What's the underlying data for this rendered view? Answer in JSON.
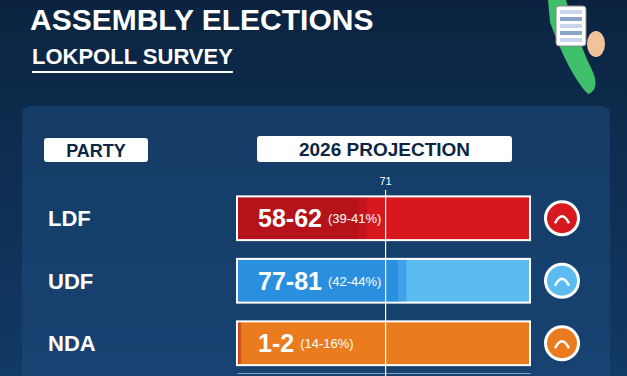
{
  "chart_data": {
    "type": "bar",
    "orientation": "horizontal",
    "title": "ASSEMBLY ELECTIONS",
    "subtitle": "LOKPOLL SURVEY",
    "y_label": "PARTY",
    "x_label": "2026 PROJECTION",
    "categories": [
      "LDF",
      "UDF",
      "NDA"
    ],
    "values": [
      [
        58,
        62
      ],
      [
        77,
        81
      ],
      [
        1,
        2
      ]
    ],
    "value_labels": [
      "58-62",
      "77-81",
      "1-2"
    ],
    "vote_share_labels": [
      "(39-41%)",
      "(42-44%)",
      "(14-16%)"
    ],
    "colors": [
      "#b5121a",
      "#2b8fe0",
      "#c23a1c"
    ],
    "xlim": [
      0,
      140
    ],
    "xticks": [],
    "tick_labels": false,
    "data_labels": true,
    "annotations": [
      {
        "x": 71,
        "text": "71"
      }
    ]
  }
}
